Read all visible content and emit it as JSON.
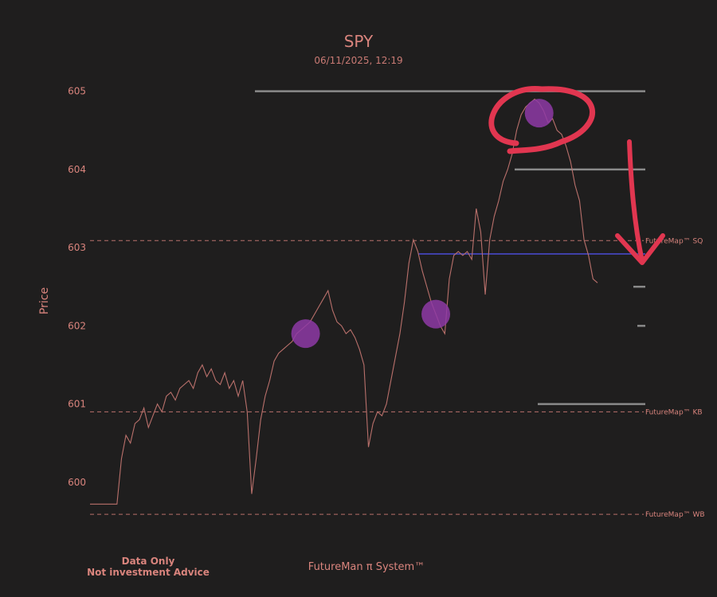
{
  "chart_data": {
    "type": "line",
    "title": "SPY",
    "subtitle": "06/11/2025, 12:19",
    "ylabel": "Price",
    "xlabel": "",
    "ylim": [
      599.55,
      605.2
    ],
    "yticks": [
      600,
      601,
      602,
      603,
      604,
      605
    ],
    "grid": false,
    "series": [
      {
        "points": [
          [
            0,
            599.72
          ],
          [
            6,
            599.72
          ],
          [
            7,
            600.3
          ],
          [
            8,
            600.6
          ],
          [
            9,
            600.5
          ],
          [
            10,
            600.75
          ],
          [
            11,
            600.8
          ],
          [
            12,
            600.95
          ],
          [
            13,
            600.7
          ],
          [
            14,
            600.85
          ],
          [
            15,
            601.0
          ],
          [
            16,
            600.9
          ],
          [
            17,
            601.1
          ],
          [
            18,
            601.15
          ],
          [
            19,
            601.05
          ],
          [
            20,
            601.2
          ],
          [
            21,
            601.25
          ],
          [
            22,
            601.3
          ],
          [
            23,
            601.2
          ],
          [
            24,
            601.4
          ],
          [
            25,
            601.5
          ],
          [
            26,
            601.35
          ],
          [
            27,
            601.45
          ],
          [
            28,
            601.3
          ],
          [
            29,
            601.25
          ],
          [
            30,
            601.4
          ],
          [
            31,
            601.2
          ],
          [
            32,
            601.3
          ],
          [
            33,
            601.1
          ],
          [
            34,
            601.3
          ],
          [
            35,
            600.9
          ],
          [
            36,
            599.85
          ],
          [
            37,
            600.3
          ],
          [
            38,
            600.8
          ],
          [
            39,
            601.1
          ],
          [
            40,
            601.3
          ],
          [
            41,
            601.55
          ],
          [
            42,
            601.65
          ],
          [
            43,
            601.7
          ],
          [
            44,
            601.75
          ],
          [
            45,
            601.8
          ],
          [
            46,
            601.9
          ],
          [
            47,
            601.95
          ],
          [
            48,
            602.0
          ],
          [
            49,
            602.05
          ],
          [
            50,
            602.15
          ],
          [
            51,
            602.25
          ],
          [
            52,
            602.35
          ],
          [
            53,
            602.45
          ],
          [
            54,
            602.2
          ],
          [
            55,
            602.05
          ],
          [
            56,
            602.0
          ],
          [
            57,
            601.9
          ],
          [
            58,
            601.95
          ],
          [
            59,
            601.85
          ],
          [
            60,
            601.7
          ],
          [
            61,
            601.5
          ],
          [
            62,
            600.45
          ],
          [
            63,
            600.75
          ],
          [
            64,
            600.9
          ],
          [
            65,
            600.85
          ],
          [
            66,
            601.0
          ],
          [
            67,
            601.3
          ],
          [
            68,
            601.6
          ],
          [
            69,
            601.9
          ],
          [
            70,
            602.3
          ],
          [
            71,
            602.8
          ],
          [
            72,
            603.1
          ],
          [
            73,
            602.95
          ],
          [
            74,
            602.7
          ],
          [
            75,
            602.5
          ],
          [
            76,
            602.3
          ],
          [
            77,
            602.15
          ],
          [
            78,
            602.0
          ],
          [
            79,
            601.9
          ],
          [
            80,
            602.6
          ],
          [
            81,
            602.9
          ],
          [
            82,
            602.95
          ],
          [
            83,
            602.9
          ],
          [
            84,
            602.95
          ],
          [
            85,
            602.85
          ],
          [
            86,
            603.5
          ],
          [
            87,
            603.2
          ],
          [
            88,
            602.4
          ],
          [
            89,
            603.1
          ],
          [
            90,
            603.4
          ],
          [
            91,
            603.6
          ],
          [
            92,
            603.85
          ],
          [
            93,
            604.0
          ],
          [
            94,
            604.2
          ],
          [
            95,
            604.5
          ],
          [
            96,
            604.7
          ],
          [
            97,
            604.8
          ],
          [
            98,
            604.85
          ],
          [
            99,
            604.9
          ],
          [
            100,
            604.85
          ],
          [
            101,
            604.75
          ],
          [
            102,
            604.6
          ],
          [
            103,
            604.65
          ],
          [
            104,
            604.5
          ],
          [
            105,
            604.45
          ],
          [
            106,
            604.3
          ],
          [
            107,
            604.1
          ],
          [
            108,
            603.8
          ],
          [
            109,
            603.6
          ],
          [
            110,
            603.1
          ],
          [
            111,
            602.9
          ],
          [
            112,
            602.6
          ],
          [
            113,
            602.55
          ]
        ]
      }
    ],
    "reference_lines": [
      {
        "label": "FutureMap™ SQ",
        "value": 603.09
      },
      {
        "label": "FutureMap™ KB",
        "value": 600.9
      },
      {
        "label": "FutureMap™ WB",
        "value": 599.59
      }
    ],
    "level_lines": [
      {
        "value": 605.0,
        "color": "#8a8a8a"
      },
      {
        "value": 604.0,
        "color": "#8a8a8a"
      },
      {
        "value": 602.92,
        "color": "#4a4bd6"
      },
      {
        "value": 602.5,
        "color": "#8a8a8a"
      },
      {
        "value": 602.0,
        "color": "#8a8a8a"
      },
      {
        "value": 601.0,
        "color": "#8a8a8a"
      }
    ],
    "highlights": [
      {
        "x": 48,
        "y": 601.9
      },
      {
        "x": 77,
        "y": 602.15
      },
      {
        "x": 100,
        "y": 604.72
      }
    ]
  },
  "footer": {
    "left_line1": "Data Only",
    "left_line2": "Not investment Advice",
    "center": "FutureMan π System™"
  },
  "colors": {
    "background": "#1f1e1e",
    "text": "#d9847d",
    "line": "#b9706b",
    "reference": "#b9706b",
    "highlight": "#8e3aa6",
    "annotation": "#e13650"
  }
}
